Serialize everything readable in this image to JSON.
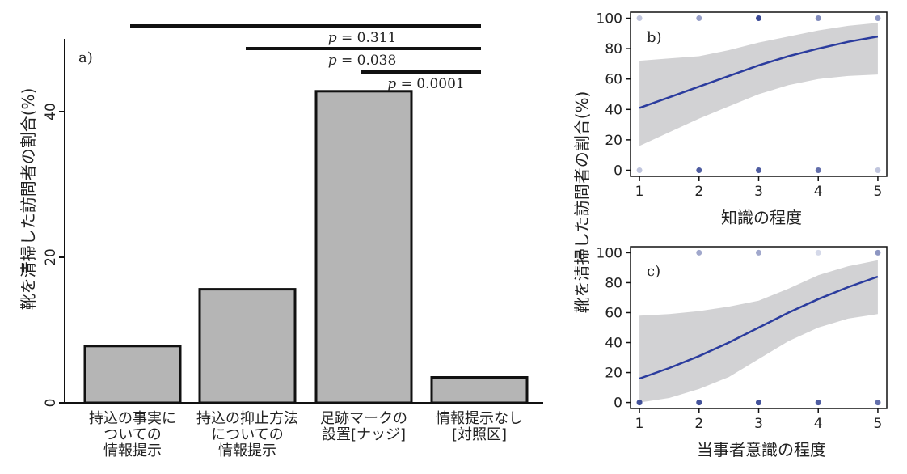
{
  "panel_labels": [
    "a)",
    "b)",
    "c)"
  ],
  "chart_data": [
    {
      "type": "bar",
      "panel": "a)",
      "categories": [
        [
          "持込の事実に",
          "ついての",
          "情報提示"
        ],
        [
          "持込の抑止方法",
          "についての",
          "情報提示"
        ],
        [
          "足跡マークの",
          "設置[ナッジ]"
        ],
        [
          "情報提示なし",
          "[対照区]"
        ]
      ],
      "values": [
        7.8,
        15.6,
        42.8,
        3.5
      ],
      "ylabel": "靴を清掃した訪問者の割合(%)",
      "ylim": [
        0,
        50
      ],
      "yticks": [
        0,
        20,
        40
      ],
      "bar_color": "#b5b5b5",
      "significance": [
        {
          "from": 0,
          "to": 3,
          "p_symbol": "p",
          "p_value": "= 0.311"
        },
        {
          "from": 1,
          "to": 3,
          "p_symbol": "p",
          "p_value": "= 0.038"
        },
        {
          "from": 2,
          "to": 3,
          "p_symbol": "p",
          "p_value": "= 0.0001"
        }
      ]
    },
    {
      "type": "line",
      "panel": "b)",
      "xlabel": "知識の程度",
      "ylabel": "靴を清掃した訪問者の割合(%)",
      "xlim": [
        0.85,
        5.15
      ],
      "ylim": [
        -4,
        104
      ],
      "xticks": [
        1,
        2,
        3,
        4,
        5
      ],
      "yticks": [
        0,
        20,
        40,
        60,
        80,
        100
      ],
      "line_color": "#2b3c9e",
      "band_color": "#d2d2d4",
      "fit": {
        "x": [
          1,
          1.5,
          2,
          2.5,
          3,
          3.5,
          4,
          4.5,
          5
        ],
        "y": [
          41,
          48,
          55,
          62,
          69,
          75,
          80,
          84.5,
          88
        ],
        "lower": [
          16,
          25,
          34,
          42,
          50,
          56,
          60,
          62,
          63
        ],
        "upper": [
          72,
          73.5,
          75,
          79,
          84,
          88,
          92,
          95,
          97
        ]
      },
      "points": [
        {
          "x": 1,
          "y": 100,
          "shade": 0.3
        },
        {
          "x": 2,
          "y": 100,
          "shade": 0.5
        },
        {
          "x": 3,
          "y": 100,
          "shade": 0.95
        },
        {
          "x": 4,
          "y": 100,
          "shade": 0.6
        },
        {
          "x": 5,
          "y": 100,
          "shade": 0.55
        },
        {
          "x": 1,
          "y": 0,
          "shade": 0.3
        },
        {
          "x": 2,
          "y": 0,
          "shade": 0.85
        },
        {
          "x": 3,
          "y": 0,
          "shade": 0.85
        },
        {
          "x": 4,
          "y": 0,
          "shade": 0.75
        },
        {
          "x": 5,
          "y": 0,
          "shade": 0.3
        }
      ]
    },
    {
      "type": "line",
      "panel": "c)",
      "xlabel": "当事者意識の程度",
      "ylabel": "靴を清掃した訪問者の割合(%)",
      "xlim": [
        0.85,
        5.15
      ],
      "ylim": [
        -4,
        104
      ],
      "xticks": [
        1,
        2,
        3,
        4,
        5
      ],
      "yticks": [
        0,
        20,
        40,
        60,
        80,
        100
      ],
      "line_color": "#2b3c9e",
      "band_color": "#d2d2d4",
      "fit": {
        "x": [
          1,
          1.5,
          2,
          2.5,
          3,
          3.5,
          4,
          4.5,
          5
        ],
        "y": [
          16,
          23,
          31,
          40,
          50,
          60,
          69,
          77,
          84
        ],
        "lower": [
          0,
          3,
          9,
          17,
          29,
          41,
          50,
          56,
          59
        ],
        "upper": [
          58,
          59,
          61,
          64,
          68,
          76,
          85,
          91,
          95
        ]
      },
      "points": [
        {
          "x": 2,
          "y": 100,
          "shade": 0.45
        },
        {
          "x": 3,
          "y": 100,
          "shade": 0.45
        },
        {
          "x": 4,
          "y": 100,
          "shade": 0.2
        },
        {
          "x": 5,
          "y": 100,
          "shade": 0.55
        },
        {
          "x": 1,
          "y": 0,
          "shade": 0.9
        },
        {
          "x": 2,
          "y": 0,
          "shade": 0.9
        },
        {
          "x": 3,
          "y": 0,
          "shade": 0.9
        },
        {
          "x": 4,
          "y": 0,
          "shade": 0.85
        },
        {
          "x": 5,
          "y": 0,
          "shade": 0.75
        }
      ]
    }
  ]
}
